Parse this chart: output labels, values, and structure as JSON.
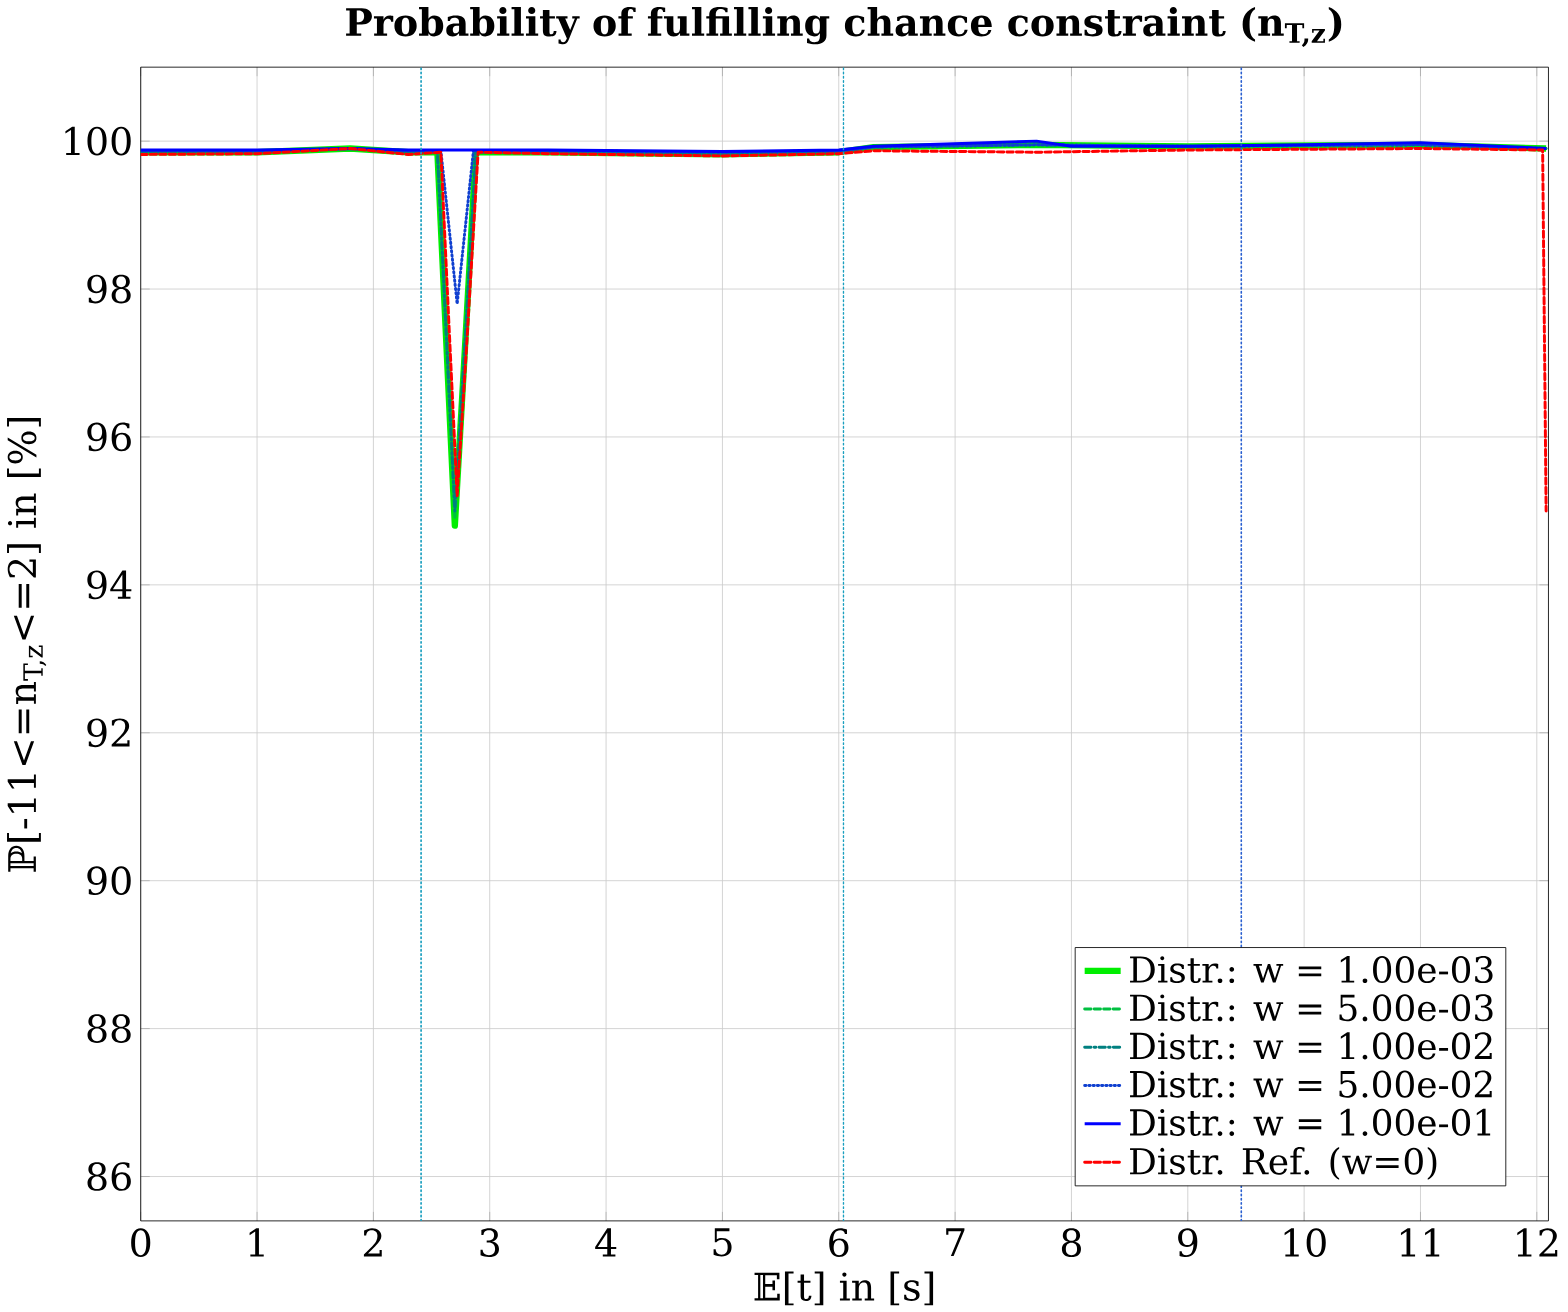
{
  "chart_data": {
    "type": "line",
    "title": "**Probability of fulfilling chance constraint (n$_{T,z}$)**",
    "xlabel": "𝔼[t] in [s]",
    "ylabel": "ℙ[-11<=n$_{T,z}$<=2] in [%]",
    "xlim": [
      0,
      12.1
    ],
    "ylim": [
      85.4,
      101
    ],
    "xticks": [
      0,
      1,
      2,
      3,
      4,
      5,
      6,
      7,
      8,
      9,
      10,
      11,
      12
    ],
    "yticks": [
      86,
      88,
      90,
      92,
      94,
      96,
      98,
      100
    ],
    "grid": true,
    "legend": "bottom right",
    "marker": "none",
    "ref_lines": [
      {
        "axis": "x",
        "value": 2.41,
        "color": "#1a9fbf",
        "line_style": "dotted"
      },
      {
        "axis": "x",
        "value": 6.04,
        "color": "#1a9fbf",
        "line_style": "dotted"
      },
      {
        "axis": "x",
        "value": 9.46,
        "color": "#2a60d0",
        "line_style": "dotted"
      }
    ],
    "series": [
      {
        "name": "Distr.: w = 1.00e-03",
        "color": "#00ee00",
        "line_style": "solid",
        "x": [
          0,
          1,
          1.8,
          2.3,
          2.55,
          2.62,
          2.7,
          2.78,
          2.88,
          3.5,
          5,
          6,
          6.3,
          7.7,
          9,
          11,
          12.08
        ],
        "values": [
          99.85,
          99.85,
          99.9,
          99.85,
          99.85,
          97.5,
          94.8,
          97.0,
          99.85,
          99.85,
          99.82,
          99.85,
          99.92,
          99.95,
          99.93,
          99.95,
          99.9
        ]
      },
      {
        "name": "Distr.: w = 5.00e-03",
        "color": "#00c040",
        "line_style": "dashed",
        "x": [
          0,
          1,
          1.8,
          2.3,
          2.55,
          2.62,
          2.7,
          2.78,
          2.88,
          3.5,
          5,
          6,
          6.3,
          7.7,
          9,
          11,
          12.08
        ],
        "values": [
          99.85,
          99.85,
          99.9,
          99.85,
          99.85,
          97.5,
          94.9,
          97.0,
          99.85,
          99.85,
          99.82,
          99.85,
          99.92,
          99.95,
          99.93,
          99.95,
          99.9
        ]
      },
      {
        "name": "Distr.: w = 1.00e-02",
        "color": "#008080",
        "line_style": "dashdot",
        "x": [
          0,
          1,
          1.8,
          2.3,
          2.55,
          2.62,
          2.7,
          2.78,
          2.88,
          3.5,
          5,
          6,
          6.3,
          7.7,
          9,
          11,
          12.08
        ],
        "values": [
          99.85,
          99.85,
          99.9,
          99.85,
          99.85,
          97.6,
          95.0,
          97.1,
          99.85,
          99.85,
          99.82,
          99.85,
          99.92,
          99.95,
          99.93,
          99.95,
          99.9
        ]
      },
      {
        "name": "Distr.: w = 5.00e-02",
        "color": "#1040d0",
        "line_style": "dotted",
        "x": [
          0,
          1,
          1.8,
          2.3,
          2.58,
          2.72,
          2.86,
          3.5,
          5,
          6,
          6.3,
          7.7,
          9,
          11,
          12.08
        ],
        "values": [
          99.87,
          99.87,
          99.9,
          99.87,
          99.87,
          97.8,
          99.87,
          99.87,
          99.85,
          99.87,
          99.92,
          99.95,
          99.93,
          99.95,
          99.9
        ]
      },
      {
        "name": "Distr.: w = 1.00e-01",
        "color": "#0000ff",
        "line_style": "solid",
        "x": [
          0,
          1,
          1.8,
          2.3,
          2.7,
          3.5,
          5,
          6,
          6.3,
          7.7,
          8,
          9,
          10,
          11,
          12.08
        ],
        "values": [
          99.88,
          99.88,
          99.9,
          99.88,
          99.88,
          99.88,
          99.86,
          99.88,
          99.93,
          100.0,
          99.93,
          99.93,
          99.95,
          99.98,
          99.9
        ]
      },
      {
        "name": "Distr. Ref. (w=0)",
        "color": "#ff0000",
        "line_style": "dashed",
        "x": [
          0,
          1,
          1.8,
          2.3,
          2.58,
          2.65,
          2.72,
          2.8,
          2.9,
          3.5,
          5,
          6,
          6.3,
          7.7,
          9,
          11,
          12.05,
          12.08
        ],
        "values": [
          99.82,
          99.83,
          99.9,
          99.82,
          99.85,
          97.5,
          95.2,
          97.2,
          99.85,
          99.83,
          99.8,
          99.83,
          99.87,
          99.85,
          99.88,
          99.9,
          99.88,
          95.0
        ]
      }
    ]
  }
}
